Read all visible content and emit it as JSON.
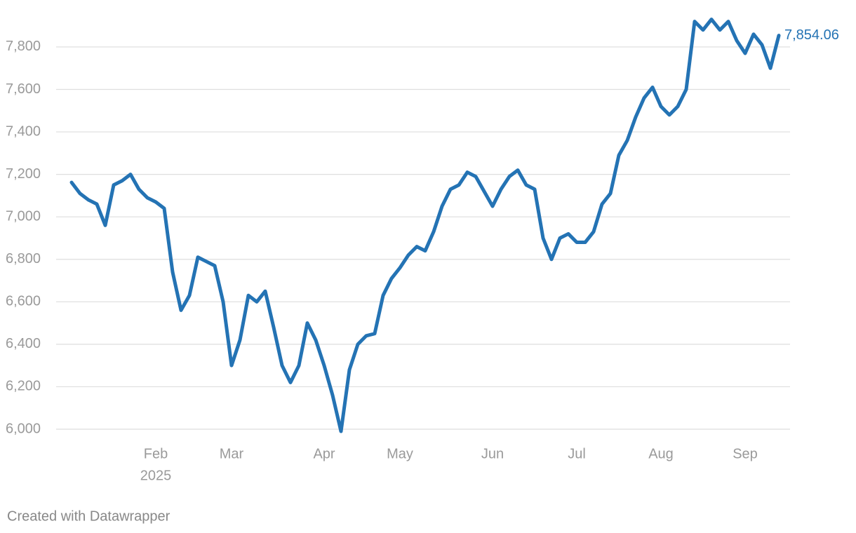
{
  "chart_data": {
    "type": "line",
    "categories": [
      null,
      null,
      null,
      null,
      null,
      null,
      null,
      null,
      null,
      null,
      "Feb",
      null,
      null,
      null,
      null,
      null,
      null,
      null,
      null,
      "Mar",
      null,
      null,
      null,
      null,
      null,
      null,
      null,
      null,
      null,
      null,
      "Apr",
      null,
      null,
      null,
      null,
      null,
      null,
      null,
      null,
      "May",
      null,
      null,
      null,
      null,
      null,
      null,
      null,
      null,
      null,
      null,
      "Jun",
      null,
      null,
      null,
      null,
      null,
      null,
      null,
      null,
      null,
      "Jul",
      null,
      null,
      null,
      null,
      null,
      null,
      null,
      null,
      null,
      "Aug",
      null,
      null,
      null,
      null,
      null,
      null,
      null,
      null,
      null,
      "Sep",
      null,
      null,
      null,
      null
    ],
    "year_label": "2025",
    "values": [
      7162,
      7110,
      7080,
      7060,
      6960,
      7150,
      7170,
      7200,
      7130,
      7090,
      7070,
      7040,
      6740,
      6560,
      6630,
      6810,
      6790,
      6770,
      6600,
      6300,
      6420,
      6630,
      6600,
      6650,
      6480,
      6300,
      6220,
      6300,
      6500,
      6420,
      6300,
      6160,
      5990,
      6280,
      6400,
      6440,
      6450,
      6630,
      6710,
      6760,
      6820,
      6860,
      6840,
      6930,
      7050,
      7130,
      7150,
      7210,
      7190,
      7120,
      7050,
      7130,
      7190,
      7220,
      7150,
      7130,
      6900,
      6800,
      6900,
      6920,
      6880,
      6880,
      6930,
      7060,
      7110,
      7290,
      7360,
      7470,
      7560,
      7610,
      7520,
      7480,
      7520,
      7600,
      7920,
      7880,
      7930,
      7880,
      7920,
      7830,
      7770,
      7860,
      7810,
      7700,
      7854.06
    ],
    "value_labels": [
      null,
      null,
      null,
      null,
      null,
      null,
      null,
      null,
      null,
      null,
      null,
      null,
      null,
      null,
      null,
      null,
      null,
      null,
      null,
      null,
      null,
      null,
      null,
      null,
      null,
      null,
      null,
      null,
      null,
      null,
      null,
      null,
      null,
      null,
      null,
      null,
      null,
      null,
      null,
      null,
      null,
      null,
      null,
      null,
      null,
      null,
      null,
      null,
      null,
      null,
      null,
      null,
      null,
      null,
      null,
      null,
      null,
      null,
      null,
      null,
      null,
      null,
      null,
      null,
      null,
      null,
      null,
      null,
      null,
      null,
      null,
      null,
      null,
      null,
      null,
      null,
      null,
      null,
      null,
      null,
      null,
      null,
      null,
      null,
      "7,854.06"
    ],
    "color": "#2473b4",
    "ylim": [
      5900,
      8000
    ],
    "yticks": [
      {
        "value": 6000,
        "label": "6,000"
      },
      {
        "value": 6200,
        "label": "6,200"
      },
      {
        "value": 6400,
        "label": "6,400"
      },
      {
        "value": 6600,
        "label": "6,600"
      },
      {
        "value": 6800,
        "label": "6,800"
      },
      {
        "value": 7000,
        "label": "7,000"
      },
      {
        "value": 7200,
        "label": "7,200"
      },
      {
        "value": 7400,
        "label": "7,400"
      },
      {
        "value": 7600,
        "label": "7,600"
      },
      {
        "value": 7800,
        "label": "7,800"
      }
    ],
    "grid": true,
    "footer": "Created with Datawrapper"
  }
}
